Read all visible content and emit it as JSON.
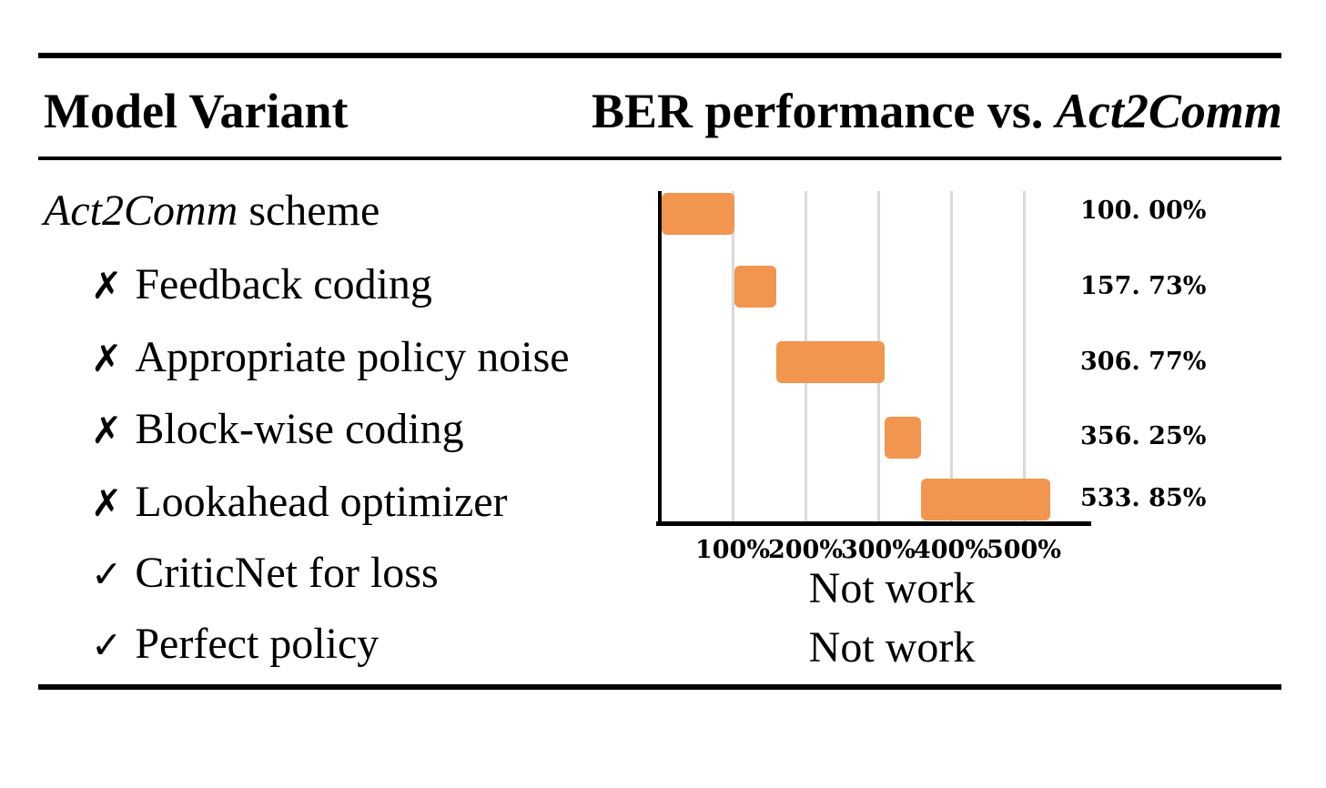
{
  "table": {
    "header": {
      "model_variant": "Model Variant",
      "performance_title_prefix": "BER performance vs. ",
      "performance_title_italic": "Act2Comm"
    },
    "rows": [
      {
        "mark": "",
        "label_italic": "Act2Comm",
        "label_rest": " scheme"
      },
      {
        "mark": "✗",
        "label_italic": "",
        "label_rest": "Feedback coding"
      },
      {
        "mark": "✗",
        "label_italic": "",
        "label_rest": "Appropriate policy noise"
      },
      {
        "mark": "✗",
        "label_italic": "",
        "label_rest": "Block-wise coding"
      },
      {
        "mark": "✗",
        "label_italic": "",
        "label_rest": "Lookahead optimizer"
      },
      {
        "mark": "✓",
        "label_italic": "",
        "label_rest": "CriticNet for loss"
      },
      {
        "mark": "✓",
        "label_italic": "",
        "label_rest": "Perfect policy"
      }
    ]
  },
  "chart_data": {
    "type": "bar",
    "orientation": "horizontal-floating-waterfall",
    "title": "BER performance vs. Act2Comm",
    "categories": [
      "Act2Comm scheme",
      "✗ Feedback coding",
      "✗ Appropriate policy noise",
      "✗ Block-wise coding",
      "✗ Lookahead optimizer",
      "✓ CriticNet for loss",
      "✓ Perfect policy"
    ],
    "values": [
      100.0,
      157.73,
      306.77,
      356.25,
      533.85,
      null,
      null
    ],
    "value_labels": [
      "100. 00%",
      "157. 73%",
      "306. 77%",
      "356. 25%",
      "533. 85%"
    ],
    "not_work_labels": [
      "Not work",
      "Not work"
    ],
    "bars": [
      {
        "start": 0,
        "end": 100
      },
      {
        "start": 100,
        "end": 157.73
      },
      {
        "start": 157.73,
        "end": 306.77
      },
      {
        "start": 306.77,
        "end": 356.25
      },
      {
        "start": 356.25,
        "end": 533.85
      }
    ],
    "x_ticks": [
      {
        "value": 100,
        "label": "100%"
      },
      {
        "value": 200,
        "label": "200%"
      },
      {
        "value": 300,
        "label": "300%"
      },
      {
        "value": 400,
        "label": "400%"
      },
      {
        "value": 500,
        "label": "500%"
      }
    ],
    "xlim": [
      0,
      580
    ],
    "grid": true,
    "legend": false,
    "bar_color": "#F2954F",
    "gridline_color": "#D9D9D9",
    "axis_color": "#000000"
  }
}
